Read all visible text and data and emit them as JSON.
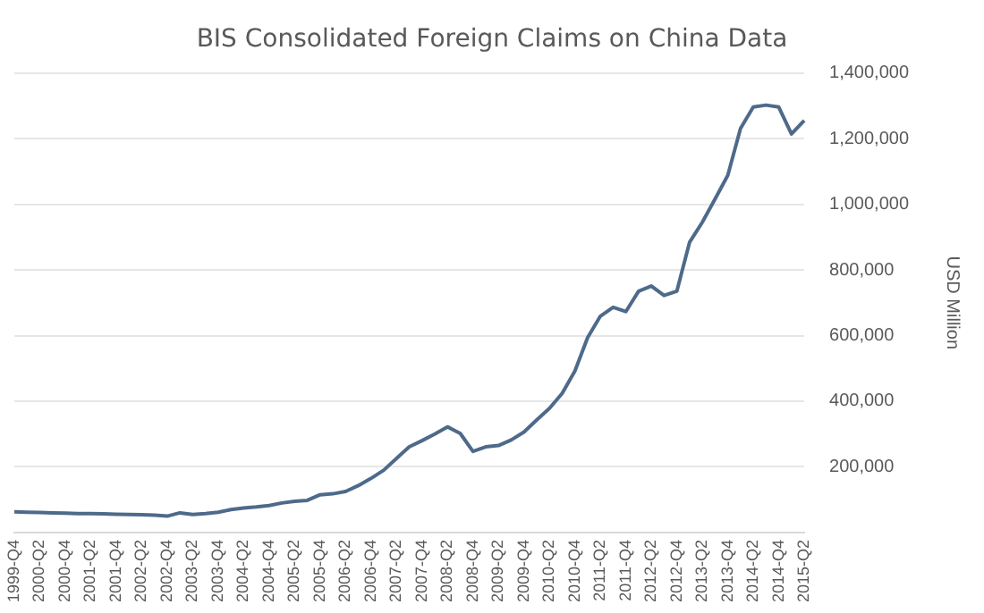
{
  "chart_data": {
    "type": "line",
    "title": "BIS Consolidated Foreign Claims on China Data",
    "ylabel": "USD Million",
    "categories": [
      "1999-Q4",
      null,
      "2000-Q2",
      null,
      "2000-Q4",
      null,
      "2001-Q2",
      null,
      "2001-Q4",
      null,
      "2002-Q2",
      null,
      "2002-Q4",
      null,
      "2003-Q2",
      null,
      "2003-Q4",
      null,
      "2004-Q2",
      null,
      "2004-Q4",
      null,
      "2005-Q2",
      null,
      "2005-Q4",
      null,
      "2006-Q2",
      null,
      "2006-Q4",
      null,
      "2007-Q2",
      null,
      "2007-Q4",
      null,
      "2008-Q2",
      null,
      "2008-Q4",
      null,
      "2009-Q2",
      null,
      "2009-Q4",
      null,
      "2010-Q2",
      null,
      "2010-Q4",
      null,
      "2011-Q2",
      null,
      "2011-Q4",
      null,
      "2012-Q2",
      null,
      "2012-Q4",
      null,
      "2013-Q2",
      null,
      "2013-Q4",
      null,
      "2014-Q2",
      null,
      "2014-Q4",
      null,
      "2015-Q2"
    ],
    "series": [
      {
        "color": "#4e6a8a",
        "values": [
          63000,
          62000,
          61000,
          60000,
          59000,
          58000,
          58000,
          57000,
          56000,
          55000,
          54000,
          53000,
          50000,
          60000,
          55000,
          58000,
          62000,
          70000,
          75000,
          78000,
          82000,
          90000,
          95000,
          98000,
          115000,
          118000,
          125000,
          143000,
          165000,
          190000,
          226000,
          261000,
          280000,
          300000,
          322000,
          302000,
          247000,
          261000,
          265000,
          282000,
          306000,
          343000,
          378000,
          424000,
          492000,
          594000,
          659000,
          686000,
          673000,
          735000,
          751000,
          722000,
          735000,
          884000,
          945000,
          1016000,
          1088000,
          1231000,
          1296000,
          1302000,
          1296000,
          1214000,
          1255000
        ]
      }
    ],
    "ylim": [
      0,
      1400000
    ],
    "yticks": [
      {
        "value": 0,
        "label": null
      },
      {
        "value": 200000,
        "label": "200,000"
      },
      {
        "value": 400000,
        "label": "400,000"
      },
      {
        "value": 600000,
        "label": "600,000"
      },
      {
        "value": 800000,
        "label": "800,000"
      },
      {
        "value": 1000000,
        "label": "1,000,000"
      },
      {
        "value": 1200000,
        "label": "1,200,000"
      },
      {
        "value": 1400000,
        "label": "1,400,000"
      }
    ],
    "grid": "y",
    "legend": false,
    "marker": "none",
    "line_style": "solid"
  }
}
